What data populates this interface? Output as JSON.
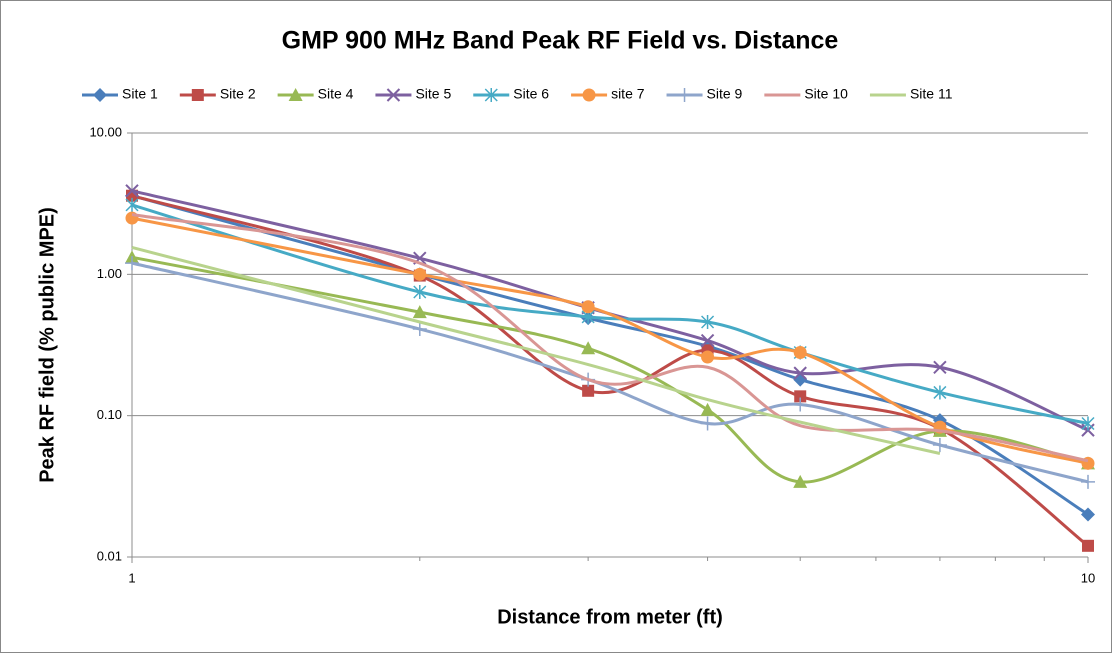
{
  "chart_data": {
    "type": "line",
    "title": "GMP 900 MHz Band Peak RF Field vs. Distance",
    "x_label": "Distance from meter (ft)",
    "y_label": "Peak RF field (% public MPE)",
    "x": [
      1,
      2,
      3,
      4,
      5,
      7,
      10
    ],
    "xlim": [
      1,
      10
    ],
    "xticks": [
      1,
      10
    ],
    "xscale": "log",
    "ylim": [
      0.01,
      10
    ],
    "yscale": "log",
    "yticks": [
      0.01,
      {
        "value": 0.1,
        "label": "0.10"
      },
      {
        "value": 1,
        "label": "1.00"
      },
      {
        "value": 10,
        "label": "10.00"
      }
    ],
    "grid": true,
    "legend": "top",
    "smooth": true,
    "series": [
      {
        "name": "Site 1",
        "color": "#4a7ebb",
        "marker": "diamond",
        "values": [
          3.6,
          1.0,
          0.49,
          0.31,
          0.18,
          0.093,
          0.02
        ]
      },
      {
        "name": "Site 2",
        "color": "#be4b48",
        "marker": "square",
        "values": [
          3.6,
          0.98,
          0.15,
          0.29,
          0.137,
          0.081,
          0.012
        ]
      },
      {
        "name": "Site 4",
        "color": "#98b954",
        "marker": "triangle",
        "values": [
          1.32,
          0.54,
          0.3,
          0.11,
          0.034,
          0.078,
          0.046
        ]
      },
      {
        "name": "Site 5",
        "color": "#7d60a0",
        "marker": "x",
        "values": [
          3.9,
          1.3,
          0.58,
          0.34,
          0.2,
          0.22,
          0.079
        ]
      },
      {
        "name": "Site 6",
        "color": "#46aac5",
        "marker": "star",
        "values": [
          3.1,
          0.75,
          0.5,
          0.46,
          0.28,
          0.146,
          0.088
        ]
      },
      {
        "name": "site 7",
        "color": "#f79646",
        "marker": "circle",
        "values": [
          2.5,
          1.0,
          0.59,
          0.26,
          0.28,
          0.083,
          0.046
        ]
      },
      {
        "name": "Site 9",
        "color": "#8ea5cb",
        "marker": "plus",
        "values": [
          1.2,
          0.41,
          0.18,
          0.088,
          0.12,
          0.062,
          0.034
        ]
      },
      {
        "name": "Site 10",
        "color": "#d99694",
        "marker": "none",
        "values": [
          2.65,
          1.2,
          0.18,
          0.22,
          0.085,
          0.078,
          0.048
        ]
      },
      {
        "name": "Site 11",
        "color": "#b8d38d",
        "marker": "none",
        "values": [
          1.55,
          0.46,
          0.23,
          0.13,
          0.09,
          0.054,
          null
        ]
      }
    ]
  }
}
